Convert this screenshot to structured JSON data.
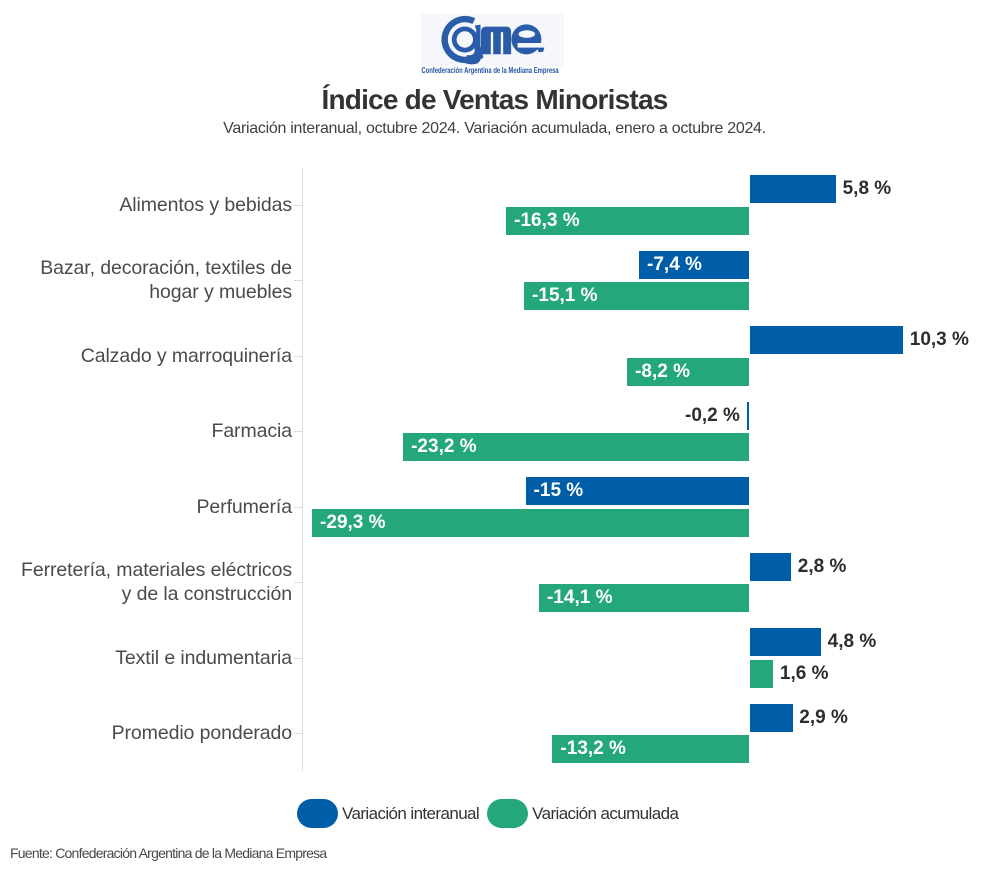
{
  "logo": {
    "brand": "Came",
    "caption": "Confederación Argentina de la Mediana Empresa",
    "color": "#2155a4"
  },
  "header": {
    "title": "Índice de Ventas Minoristas",
    "subtitle": "Variación interanual, octubre 2024. Variación acumulada, enero a octubre 2024."
  },
  "chart_data": {
    "type": "bar",
    "orientation": "horizontal",
    "title": "Índice de Ventas Minoristas",
    "subtitle": "Variación interanual, octubre 2024. Variación acumulada, enero a octubre 2024.",
    "unit": "%",
    "decimal_separator": ",",
    "xlim": [
      -30,
      16
    ],
    "grid": false,
    "axis_color": "#dbdbdb",
    "legend_position": "bottom-center",
    "categories": [
      {
        "lines": [
          "Alimentos y bebidas"
        ]
      },
      {
        "lines": [
          "Bazar, decoración, textiles de",
          "hogar y muebles"
        ]
      },
      {
        "lines": [
          "Calzado y marroquinería"
        ]
      },
      {
        "lines": [
          "Farmacia"
        ]
      },
      {
        "lines": [
          "Perfumería"
        ]
      },
      {
        "lines": [
          "Ferretería, materiales eléctricos",
          "y de la construcción"
        ]
      },
      {
        "lines": [
          "Textil e indumentaria"
        ]
      },
      {
        "lines": [
          "Promedio ponderado"
        ]
      }
    ],
    "series": [
      {
        "name": "Variación interanual",
        "color": "#005da8",
        "values": [
          5.8,
          -7.4,
          10.3,
          -0.2,
          -15,
          2.8,
          4.8,
          2.9
        ],
        "labels": [
          "5,8 %",
          "-7,4 %",
          "10,3 %",
          "-0,2 %",
          "-15 %",
          "2,8 %",
          "4,8 %",
          "2,9 %"
        ]
      },
      {
        "name": "Variación acumulada",
        "color": "#24a879",
        "values": [
          -16.3,
          -15.1,
          -8.2,
          -23.2,
          -29.3,
          -14.1,
          1.6,
          -13.2
        ],
        "labels": [
          "-16,3 %",
          "-15,1 %",
          "-8,2 %",
          "-23,2 %",
          "-29,3 %",
          "-14,1 %",
          "1,6 %",
          "-13,2 %"
        ]
      }
    ]
  },
  "legend": {
    "items": [
      {
        "label": "Variación interanual",
        "color": "#005da8"
      },
      {
        "label": "Variación acumulada",
        "color": "#24a879"
      }
    ]
  },
  "footer": {
    "source": "Fuente: Confederación Argentina de la Mediana Empresa"
  }
}
